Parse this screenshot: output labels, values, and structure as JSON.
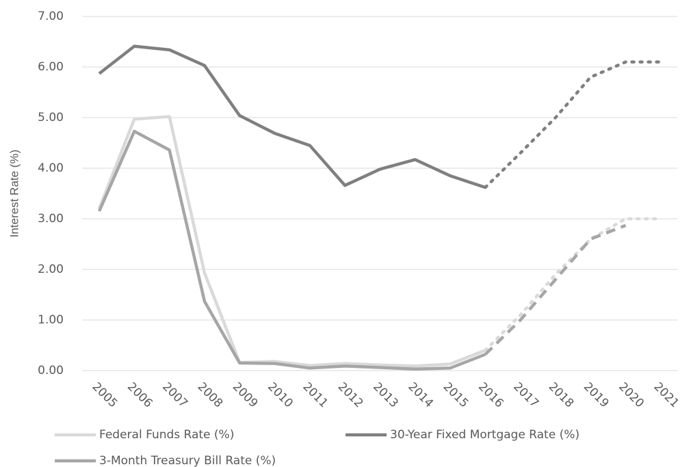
{
  "chart_data": {
    "type": "line",
    "y_label": "Interest Rate (%)",
    "categories": [
      "2005",
      "2006",
      "2007",
      "2008",
      "2009",
      "2010",
      "2011",
      "2012",
      "2013",
      "2014",
      "2015",
      "2016",
      "2017",
      "2018",
      "2019",
      "2020",
      "2021"
    ],
    "forecast_start": "2016",
    "series": [
      {
        "name": "Federal Funds Rate (%)",
        "color": "#d9d9d9",
        "forecast_dash": "dot",
        "values": [
          3.2,
          4.97,
          5.02,
          1.93,
          0.16,
          0.18,
          0.1,
          0.14,
          0.11,
          0.09,
          0.13,
          0.4,
          1.1,
          1.9,
          2.6,
          3.0,
          3.0
        ]
      },
      {
        "name": "30-Year Fixed Mortgage Rate (%)",
        "color": "#7f7f7f",
        "forecast_dash": "dot",
        "values": [
          5.87,
          6.41,
          6.34,
          6.03,
          5.04,
          4.69,
          4.45,
          3.66,
          3.98,
          4.17,
          3.85,
          3.62,
          4.3,
          5.0,
          5.8,
          6.1,
          6.1
        ]
      },
      {
        "name": "3-Month Treasury Bill Rate (%)",
        "color": "#a6a6a6",
        "forecast_dash": "dash",
        "values": [
          3.15,
          4.73,
          4.36,
          1.37,
          0.15,
          0.14,
          0.05,
          0.09,
          0.06,
          0.03,
          0.05,
          0.32,
          1.0,
          1.8,
          2.6,
          2.87,
          null
        ]
      }
    ],
    "ylim": [
      0,
      7
    ],
    "yticks": [
      {
        "value": 0,
        "label": "0.00"
      },
      {
        "value": 1,
        "label": "1.00"
      },
      {
        "value": 2,
        "label": "2.00"
      },
      {
        "value": 3,
        "label": "3.00"
      },
      {
        "value": 4,
        "label": "4.00"
      },
      {
        "value": 5,
        "label": "5.00"
      },
      {
        "value": 6,
        "label": "6.00"
      },
      {
        "value": 7,
        "label": "7.00"
      }
    ],
    "grid": true,
    "legend": "bottom"
  }
}
